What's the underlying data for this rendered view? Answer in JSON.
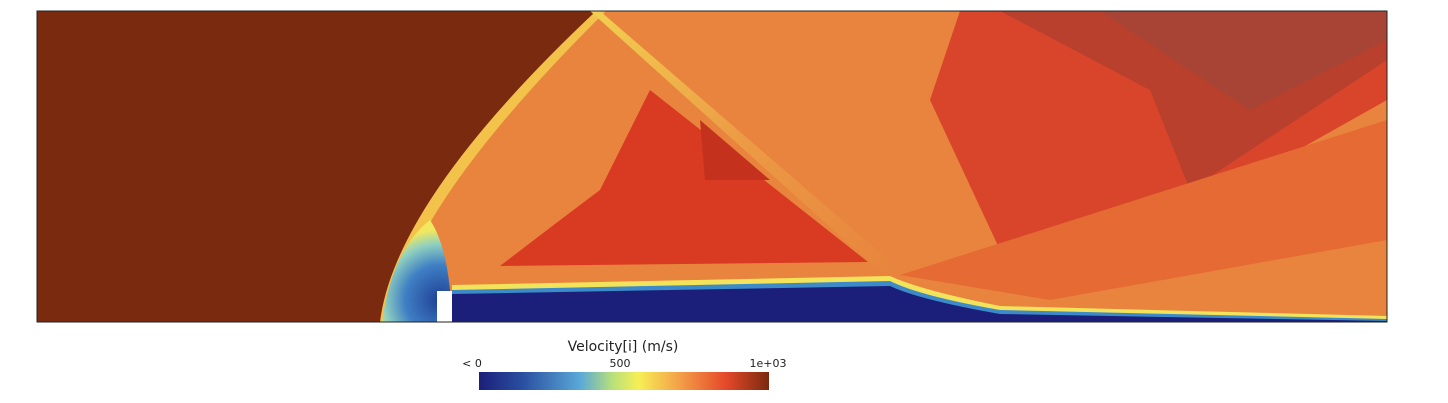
{
  "colorbar": {
    "title": "Velocity[i] (m/s)",
    "labels": [
      "< 0",
      "500",
      "1e+03"
    ]
  }
}
